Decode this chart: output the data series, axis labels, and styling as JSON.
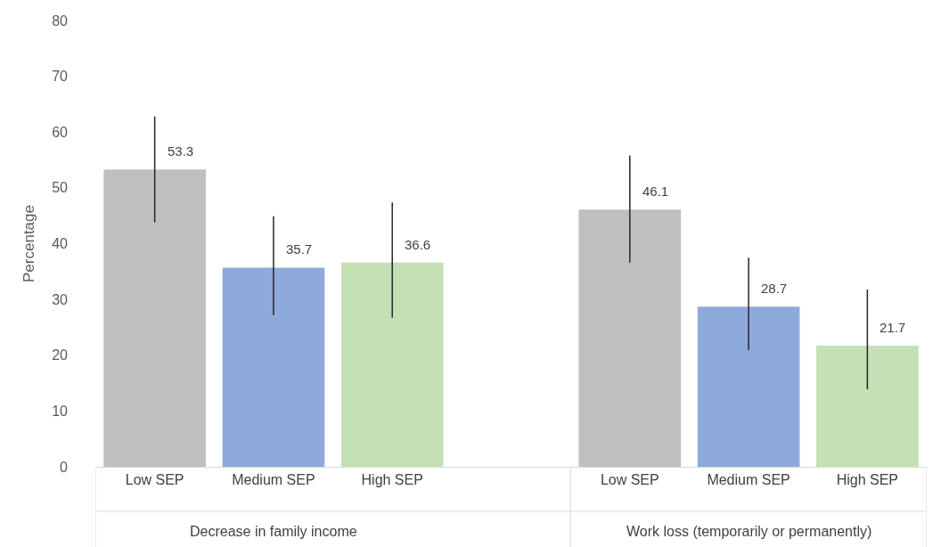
{
  "chart_data": {
    "type": "bar",
    "categories": [
      "Low SEP",
      "Medium SEP",
      "High SEP",
      null,
      "Low SEP",
      "Medium SEP",
      "High SEP"
    ],
    "values": [
      53.3,
      35.7,
      36.6,
      null,
      46.1,
      28.7,
      21.7
    ],
    "colors": [
      "#bfbfbf",
      "#8eaadb",
      "#c5e0b4",
      null,
      "#bfbfbf",
      "#8eaadb",
      "#c5e0b4"
    ],
    "errors": [
      [
        43.8,
        62.8
      ],
      [
        27.2,
        44.9
      ],
      [
        26.7,
        47.4
      ],
      null,
      [
        36.6,
        55.8
      ],
      [
        20.9,
        37.5
      ],
      [
        13.9,
        31.8
      ]
    ],
    "ylabel": "Percentage",
    "ylim": [
      0,
      80
    ],
    "yticks": [
      0,
      10,
      20,
      30,
      40,
      50,
      60,
      70,
      80
    ],
    "annotations": [
      "Decrease in family income",
      "Work loss (temporarily or permanently)"
    ],
    "data_labels": true,
    "legend": false
  }
}
